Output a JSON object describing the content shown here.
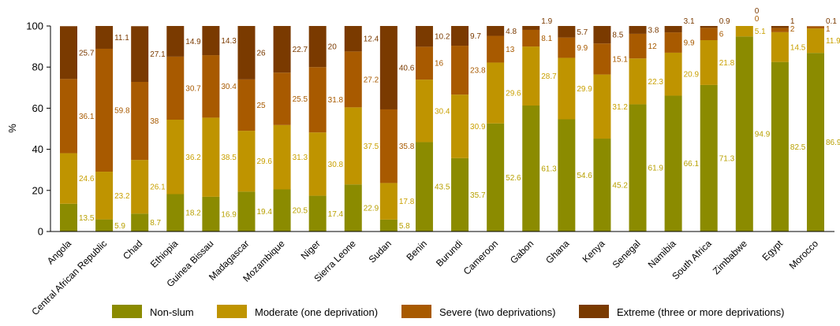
{
  "chart_data": {
    "type": "bar",
    "stacked": true,
    "title": "",
    "xlabel": "",
    "ylabel": "%",
    "ylim": [
      0,
      100
    ],
    "yticks": [
      0,
      20,
      40,
      60,
      80,
      100
    ],
    "grid": false,
    "legend_position": "bottom",
    "categories": [
      "Angola",
      "Central African Republic",
      "Chad",
      "Ethiopia",
      "Guinea Bissau",
      "Madagascar",
      "Mozambique",
      "Niger",
      "Sierra Leone",
      "Sudan",
      "Benin",
      "Burundi",
      "Cameroon",
      "Gabon",
      "Ghana",
      "Kenya",
      "Senegal",
      "Namibia",
      "South Africa",
      "Zimbabwe",
      "Egypt",
      "Morocco"
    ],
    "series": [
      {
        "name": "Non-slum",
        "color": "#8b8b00",
        "label_color": "#b8a000",
        "values": [
          13.5,
          5.9,
          8.7,
          18.2,
          16.9,
          19.4,
          20.5,
          17.4,
          22.9,
          5.8,
          43.5,
          35.7,
          52.6,
          61.3,
          54.6,
          45.2,
          61.9,
          66.1,
          71.3,
          94.9,
          82.5,
          86.9
        ]
      },
      {
        "name": "Moderate (one deprivation)",
        "color": "#bf9400",
        "label_color": "#c9a000",
        "values": [
          24.6,
          23.2,
          26.1,
          36.2,
          38.5,
          29.6,
          31.3,
          30.8,
          37.5,
          17.8,
          30.4,
          30.9,
          29.6,
          28.7,
          29.9,
          31.2,
          22.3,
          20.9,
          21.8,
          5.1,
          14.5,
          11.9
        ]
      },
      {
        "name": "Severe (two deprivations)",
        "color": "#a85a00",
        "label_color": "#a85a00",
        "values": [
          36.1,
          59.8,
          38.0,
          30.7,
          30.4,
          25.0,
          25.5,
          31.8,
          27.2,
          35.8,
          16.0,
          23.8,
          13.0,
          8.1,
          9.9,
          15.1,
          12.0,
          9.9,
          6.0,
          0,
          2,
          1
        ]
      },
      {
        "name": "Extreme (three or more deprivations)",
        "color": "#7a3a00",
        "label_color": "#7a3a00",
        "values": [
          25.7,
          11.1,
          27.1,
          14.9,
          14.3,
          26.0,
          22.7,
          20.0,
          12.4,
          40.6,
          10.2,
          9.7,
          4.8,
          1.9,
          5.7,
          8.5,
          3.8,
          3.1,
          0.9,
          0,
          1,
          0.1
        ]
      }
    ]
  }
}
